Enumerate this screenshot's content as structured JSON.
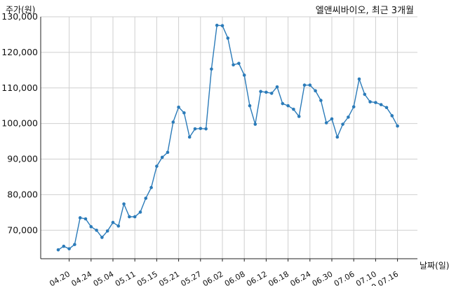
{
  "chart_data": {
    "type": "line",
    "title": "엘앤씨바이오, 최근 3개월",
    "ylabel": "주가(원)",
    "xlabel": "날짜(일)",
    "ylim": [
      62000,
      130000
    ],
    "grid": true,
    "legend": "none",
    "color": "#2b7bb9",
    "ytick_values": [
      70000,
      80000,
      90000,
      100000,
      110000,
      120000,
      130000
    ],
    "ytick_labels": [
      "70,000",
      "80,000",
      "90,000",
      "100,000",
      "110,000",
      "120,000",
      "130,000"
    ],
    "x_ticks": [
      {
        "label": "04.20",
        "index": 2
      },
      {
        "label": "04.24",
        "index": 6
      },
      {
        "label": "05.04",
        "index": 10
      },
      {
        "label": "05.11",
        "index": 14
      },
      {
        "label": "05.15",
        "index": 18
      },
      {
        "label": "05.21",
        "index": 22
      },
      {
        "label": "05.27",
        "index": 26
      },
      {
        "label": "06.02",
        "index": 30
      },
      {
        "label": "06.08",
        "index": 34
      },
      {
        "label": "06.12",
        "index": 38
      },
      {
        "label": "06.18",
        "index": 42
      },
      {
        "label": "06.24",
        "index": 46
      },
      {
        "label": "06.30",
        "index": 50
      },
      {
        "label": "07.06",
        "index": 54
      },
      {
        "label": "07.10",
        "index": 58
      },
      {
        "label": "20.07.16",
        "index": 62
      }
    ],
    "values": [
      64500,
      65500,
      64800,
      66000,
      73500,
      73200,
      71000,
      70000,
      68000,
      69800,
      72200,
      71200,
      77400,
      73800,
      73800,
      75100,
      79000,
      82000,
      88000,
      90500,
      91900,
      100400,
      104600,
      103000,
      96200,
      98500,
      98600,
      98500,
      115300,
      127600,
      127500,
      124000,
      116500,
      116900,
      113600,
      105000,
      99800,
      109000,
      108800,
      108500,
      110300,
      105600,
      105000,
      104000,
      102000,
      110800,
      110800,
      109200,
      106500,
      100200,
      101300,
      96200,
      99800,
      101800,
      104700,
      112500,
      108200,
      106100,
      105900,
      105300,
      104500,
      102200,
      99300
    ]
  }
}
